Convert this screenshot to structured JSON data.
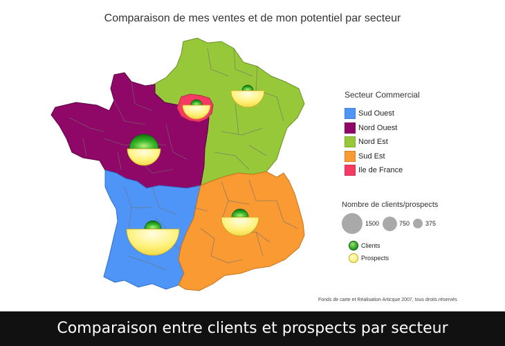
{
  "title": "Comparaison de mes ventes et de mon potentiel par secteur",
  "legend": {
    "title": "Secteur Commercial",
    "items": [
      {
        "label": "Sud Ouest",
        "color": "#4f95f7"
      },
      {
        "label": "Nord Ouest",
        "color": "#8f0867"
      },
      {
        "label": "Nord Est",
        "color": "#97c83a"
      },
      {
        "label": "Sud Est",
        "color": "#fa9a33"
      },
      {
        "label": "Ile de France",
        "color": "#f53b64"
      }
    ]
  },
  "size_legend": {
    "title": "Nombre de clients/prospects",
    "sizes": [
      {
        "label": "1500",
        "value": 1500
      },
      {
        "label": "750",
        "value": 750
      },
      {
        "label": "375",
        "value": 375
      }
    ]
  },
  "symbols": [
    {
      "label": "Clients",
      "color": "#1e9a1e"
    },
    {
      "label": "Prospects",
      "color": "#fff07a"
    }
  ],
  "credit": "Fonds de carte et Réalisation Articque 2007, tous droits réservés",
  "caption": "Comparaison entre clients et prospects par secteur",
  "colors": {
    "border": "#6f6f6f",
    "clients": "#1e9a1e",
    "prospects": "#fff07a"
  }
}
